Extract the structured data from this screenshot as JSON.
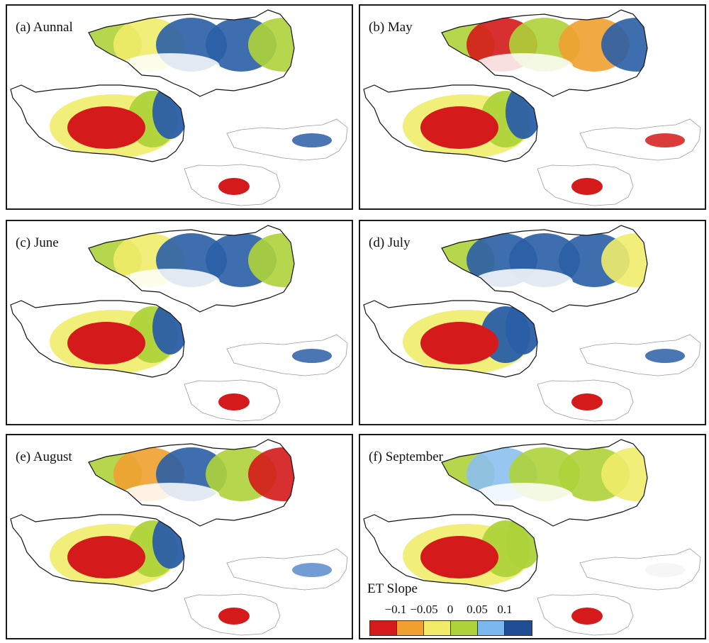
{
  "panels": [
    {
      "label": "(a) Aunnal",
      "north": [
        "#aed33a",
        "#f0ec6a",
        "#2a5ea6",
        "#2a5ea6",
        "#aed33a"
      ],
      "tibet": [
        "#d41a1a",
        "#f0ec6a",
        "#aed33a",
        "#2a5ea6"
      ],
      "inset_north": "#2a5ea6",
      "inset_south": "#d41a1a"
    },
    {
      "label": "(b) May",
      "north": [
        "#aed33a",
        "#d41a1a",
        "#aed33a",
        "#f0a030",
        "#2a5ea6"
      ],
      "tibet": [
        "#d41a1a",
        "#f0ec6a",
        "#aed33a",
        "#2a5ea6"
      ],
      "inset_north": "#d41a1a",
      "inset_south": "#d41a1a"
    },
    {
      "label": "(c) June",
      "north": [
        "#aed33a",
        "#f0ec6a",
        "#2a5ea6",
        "#2a5ea6",
        "#aed33a"
      ],
      "tibet": [
        "#d41a1a",
        "#f0ec6a",
        "#aed33a",
        "#2a5ea6"
      ],
      "inset_north": "#2a5ea6",
      "inset_south": "#d41a1a"
    },
    {
      "label": "(d) July",
      "north": [
        "#aed33a",
        "#2a5ea6",
        "#2a5ea6",
        "#2a5ea6",
        "#f0ec6a"
      ],
      "tibet": [
        "#d41a1a",
        "#f0ec6a",
        "#2a5ea6",
        "#2a5ea6"
      ],
      "inset_north": "#2a5ea6",
      "inset_south": "#d41a1a"
    },
    {
      "label": "(e) August",
      "north": [
        "#aed33a",
        "#f0a030",
        "#2a5ea6",
        "#aed33a",
        "#d41a1a"
      ],
      "tibet": [
        "#d41a1a",
        "#f0ec6a",
        "#aed33a",
        "#2a5ea6"
      ],
      "inset_north": "#5a8acc",
      "inset_south": "#d41a1a"
    },
    {
      "label": "(f) September",
      "north": [
        "#aed33a",
        "#8cc0f0",
        "#aed33a",
        "#aed33a",
        "#f0ec6a"
      ],
      "tibet": [
        "#d41a1a",
        "#f0ec6a",
        "#aed33a",
        "#aed33a"
      ],
      "inset_north": "#f4f4f4",
      "inset_south": "#d41a1a"
    }
  ],
  "legend": {
    "title": "ET Slope",
    "ticks": [
      "−0.1",
      "−0.05",
      "0",
      "0.05",
      "0.1"
    ],
    "colors": [
      "#d41a1a",
      "#f0a030",
      "#f0ec6a",
      "#aed33a",
      "#7bb8f0",
      "#1f4e96"
    ]
  }
}
